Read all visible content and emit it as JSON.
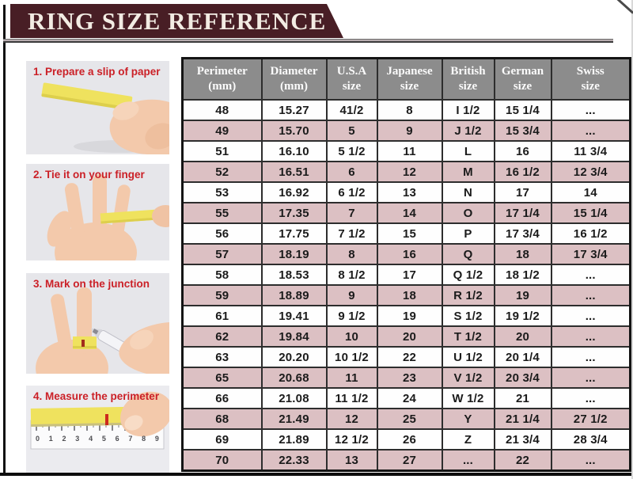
{
  "banner": {
    "title": "RING SIZE REFERENCE"
  },
  "steps": [
    {
      "label": "1. Prepare a slip of paper",
      "illustration": "hand-holding-paper-slip"
    },
    {
      "label": "2. Tie it on your finger",
      "illustration": "paper-strip-around-fingers"
    },
    {
      "label": "3. Mark on the junction",
      "illustration": "pen-marking-paper-ring"
    },
    {
      "label": "4. Measure the perimeter",
      "illustration": "ruler-measuring-paper-strip"
    }
  ],
  "ruler": {
    "numbers": [
      "0",
      "1",
      "2",
      "3",
      "4",
      "5",
      "6",
      "7",
      "8",
      "9"
    ]
  },
  "chart_data": {
    "type": "table",
    "title": "RING SIZE REFERENCE",
    "columns": [
      "Perimeter (mm)",
      "Diameter (mm)",
      "U.S.A size",
      "Japanese size",
      "British size",
      "German size",
      "Swiss size"
    ],
    "header_lines": [
      [
        "Perimeter",
        "(mm)"
      ],
      [
        "Diameter",
        "(mm)"
      ],
      [
        "U.S.A",
        "size"
      ],
      [
        "Japanese",
        "size"
      ],
      [
        "British",
        "size"
      ],
      [
        "German",
        "size"
      ],
      [
        "Swiss",
        "size"
      ]
    ],
    "rows": [
      [
        "48",
        "15.27",
        "41/2",
        "8",
        "I 1/2",
        "15 1/4",
        "..."
      ],
      [
        "49",
        "15.70",
        "5",
        "9",
        "J 1/2",
        "15 3/4",
        "..."
      ],
      [
        "51",
        "16.10",
        "5 1/2",
        "11",
        "L",
        "16",
        "11 3/4"
      ],
      [
        "52",
        "16.51",
        "6",
        "12",
        "M",
        "16 1/2",
        "12 3/4"
      ],
      [
        "53",
        "16.92",
        "6 1/2",
        "13",
        "N",
        "17",
        "14"
      ],
      [
        "55",
        "17.35",
        "7",
        "14",
        "O",
        "17 1/4",
        "15 1/4"
      ],
      [
        "56",
        "17.75",
        "7 1/2",
        "15",
        "P",
        "17 3/4",
        "16 1/2"
      ],
      [
        "57",
        "18.19",
        "8",
        "16",
        "Q",
        "18",
        "17 3/4"
      ],
      [
        "58",
        "18.53",
        "8 1/2",
        "17",
        "Q 1/2",
        "18 1/2",
        "..."
      ],
      [
        "59",
        "18.89",
        "9",
        "18",
        "R 1/2",
        "19",
        "..."
      ],
      [
        "61",
        "19.41",
        "9 1/2",
        "19",
        "S 1/2",
        "19 1/2",
        "..."
      ],
      [
        "62",
        "19.84",
        "10",
        "20",
        "T 1/2",
        "20",
        "..."
      ],
      [
        "63",
        "20.20",
        "10 1/2",
        "22",
        "U 1/2",
        "20 1/4",
        "..."
      ],
      [
        "65",
        "20.68",
        "11",
        "23",
        "V 1/2",
        "20 3/4",
        "..."
      ],
      [
        "66",
        "21.08",
        "11 1/2",
        "24",
        "W 1/2",
        "21",
        "..."
      ],
      [
        "68",
        "21.49",
        "12",
        "25",
        "Y",
        "21 1/4",
        "27 1/2"
      ],
      [
        "69",
        "21.89",
        "12 1/2",
        "26",
        "Z",
        "21 3/4",
        "28 3/4"
      ],
      [
        "70",
        "22.33",
        "13",
        "27",
        "...",
        "22",
        "..."
      ]
    ],
    "layout": {
      "striped_rows": true,
      "stripe_color": "#dcc0c3",
      "header_position": "top"
    }
  },
  "colors": {
    "banner_bg": "#481e25",
    "banner_text": "#f2ece3",
    "header_bg": "#8c8c8c",
    "header_text": "#fbfbfb",
    "row_pink": "#dcc0c3",
    "row_white": "#fefefe",
    "caption_red": "#cb2027",
    "paper_yellow": "#efe25e",
    "photo_bg": "#e6e6ea",
    "skin": "#f3c9ab"
  }
}
